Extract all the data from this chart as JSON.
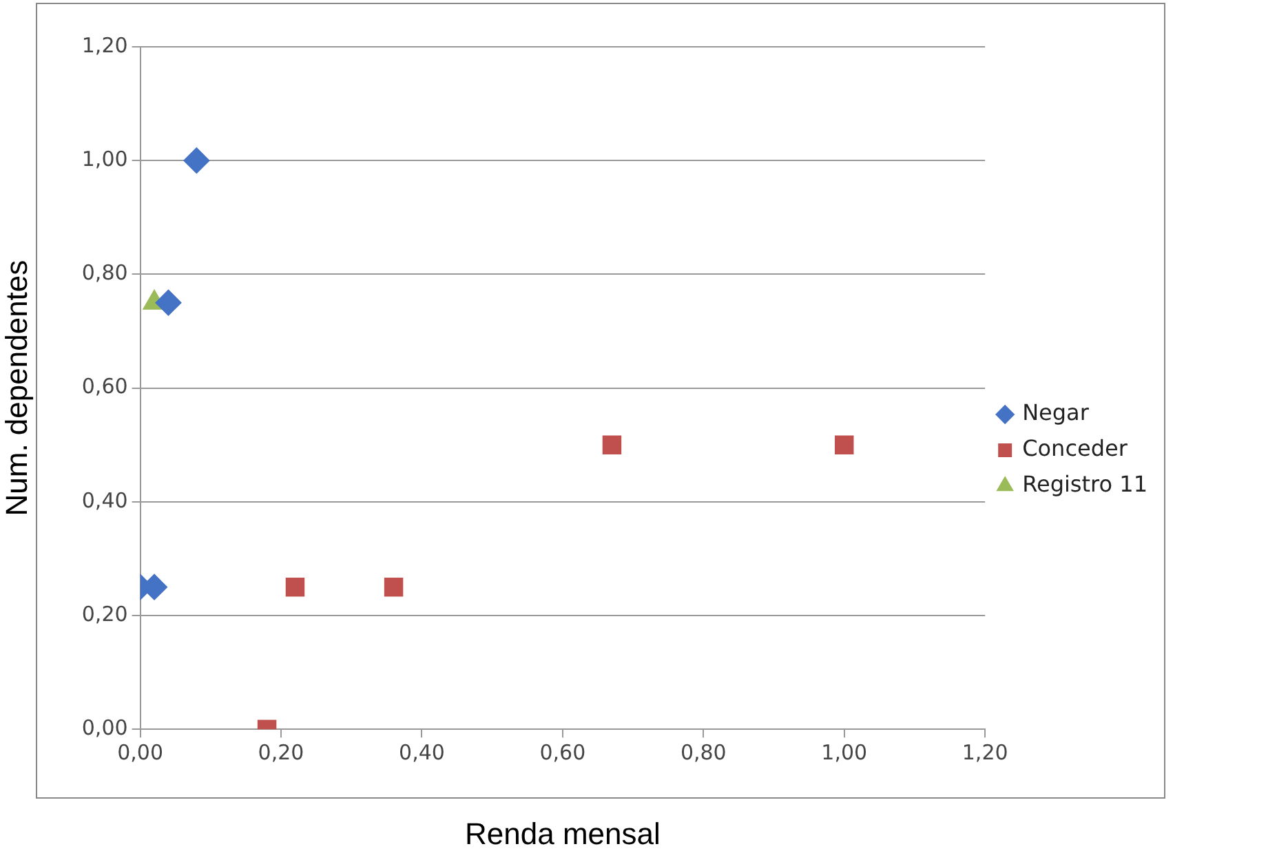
{
  "chart_data": {
    "type": "scatter",
    "xlabel": "Renda mensal",
    "ylabel": "Num. dependentes",
    "series": [
      {
        "name": "Negar",
        "color": "#4472c4",
        "marker": "diamond",
        "x": [
          0.08,
          0.04,
          0.0,
          0.02
        ],
        "values": [
          1.0,
          0.75,
          0.25,
          0.25
        ]
      },
      {
        "name": "Conceder",
        "color": "#c0504d",
        "marker": "square",
        "x": [
          0.18,
          0.22,
          0.36,
          0.67,
          1.0
        ],
        "values": [
          0.0,
          0.25,
          0.25,
          0.5,
          0.5
        ]
      },
      {
        "name": "Registro 11",
        "color": "#9bbb59",
        "marker": "triangle",
        "x": [
          0.02
        ],
        "values": [
          0.75
        ]
      }
    ],
    "xlim": [
      0,
      1.2
    ],
    "ylim": [
      0,
      1.2
    ],
    "xticks": [
      {
        "value": 0,
        "label": "0,00"
      },
      {
        "value": 0.2,
        "label": "0,20"
      },
      {
        "value": 0.4,
        "label": "0,40"
      },
      {
        "value": 0.6,
        "label": "0,60"
      },
      {
        "value": 0.8,
        "label": "0,80"
      },
      {
        "value": 1,
        "label": "1,00"
      },
      {
        "value": 1.2,
        "label": "1,20"
      }
    ],
    "yticks": [
      {
        "value": 0,
        "label": "0,00"
      },
      {
        "value": 0.2,
        "label": "0,20"
      },
      {
        "value": 0.4,
        "label": "0,40"
      },
      {
        "value": 0.6,
        "label": "0,60"
      },
      {
        "value": 0.8,
        "label": "0,80"
      },
      {
        "value": 1,
        "label": "1,00"
      },
      {
        "value": 1.2,
        "label": "1,20"
      }
    ],
    "grid": "y",
    "legend": "right"
  }
}
